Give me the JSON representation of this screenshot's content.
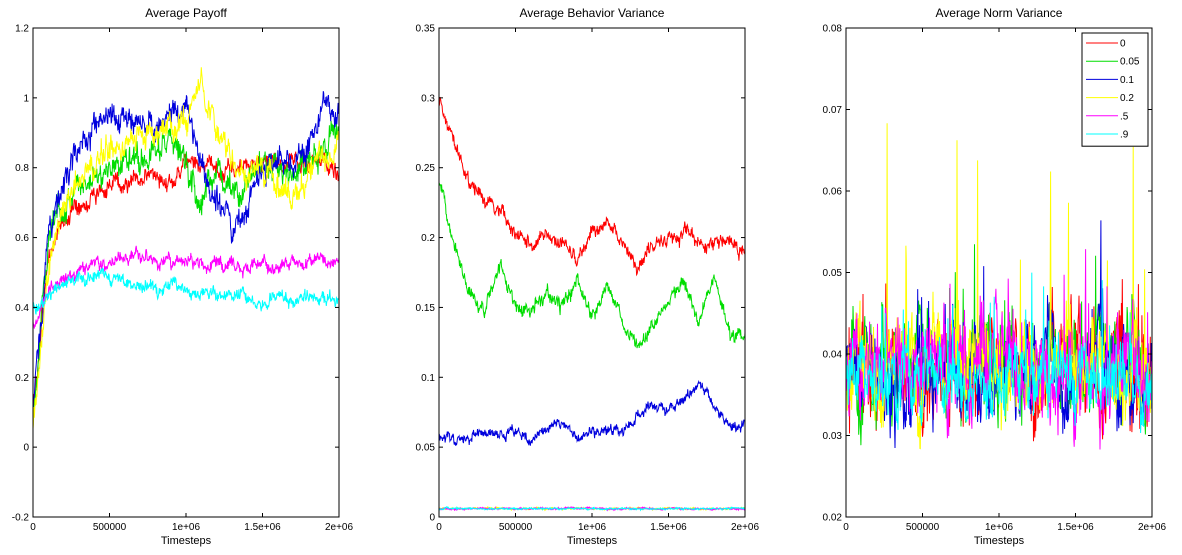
{
  "chart_data": [
    {
      "type": "line",
      "title": "Average Payoff",
      "xlabel": "Timesteps",
      "ylabel": "",
      "xlim": [
        0,
        2000000
      ],
      "ylim": [
        -0.2,
        1.2
      ],
      "xticks": [
        0,
        500000,
        1000000,
        1500000,
        2000000
      ],
      "xtick_labels": [
        "0",
        "500000",
        "1e+06",
        "1.5e+06",
        "2e+06"
      ],
      "yticks": [
        -0.2,
        0,
        0.2,
        0.4,
        0.6,
        0.8,
        1,
        1.2
      ],
      "ytick_labels": [
        "-0.2",
        "0",
        "0.2",
        "0.4",
        "0.6",
        "0.8",
        "1",
        "1.2"
      ],
      "grid": false,
      "x": [
        0,
        100000,
        200000,
        300000,
        400000,
        500000,
        600000,
        700000,
        800000,
        900000,
        1000000,
        1100000,
        1200000,
        1300000,
        1400000,
        1500000,
        1600000,
        1700000,
        1800000,
        1900000,
        2000000
      ],
      "series": [
        {
          "name": "0",
          "color": "#ff0000",
          "noise": 0.02,
          "values": [
            0.1,
            0.55,
            0.65,
            0.7,
            0.72,
            0.75,
            0.76,
            0.77,
            0.78,
            0.76,
            0.8,
            0.82,
            0.79,
            0.8,
            0.8,
            0.82,
            0.8,
            0.82,
            0.8,
            0.82,
            0.78
          ]
        },
        {
          "name": "0.05",
          "color": "#00dd00",
          "noise": 0.03,
          "values": [
            0.1,
            0.6,
            0.7,
            0.75,
            0.78,
            0.8,
            0.82,
            0.84,
            0.85,
            0.88,
            0.8,
            0.7,
            0.8,
            0.72,
            0.75,
            0.82,
            0.8,
            0.78,
            0.82,
            0.85,
            0.92
          ]
        },
        {
          "name": "0.1",
          "color": "#0000dd",
          "noise": 0.03,
          "values": [
            0.1,
            0.62,
            0.75,
            0.85,
            0.9,
            0.93,
            0.95,
            0.94,
            0.92,
            0.96,
            0.98,
            0.8,
            0.72,
            0.62,
            0.7,
            0.78,
            0.85,
            0.8,
            0.86,
            0.98,
            0.96
          ]
        },
        {
          "name": "0.2",
          "color": "#ffff00",
          "noise": 0.03,
          "values": [
            0.05,
            0.5,
            0.7,
            0.78,
            0.82,
            0.85,
            0.86,
            0.88,
            0.9,
            0.92,
            0.95,
            1.02,
            0.9,
            0.82,
            0.78,
            0.8,
            0.75,
            0.72,
            0.78,
            0.82,
            0.85
          ]
        },
        {
          "name": ".5",
          "color": "#ff00ff",
          "noise": 0.015,
          "values": [
            0.35,
            0.45,
            0.48,
            0.5,
            0.52,
            0.53,
            0.54,
            0.54,
            0.54,
            0.53,
            0.53,
            0.53,
            0.52,
            0.52,
            0.52,
            0.53,
            0.52,
            0.52,
            0.52,
            0.53,
            0.53
          ]
        },
        {
          "name": ".9",
          "color": "#00ffff",
          "noise": 0.015,
          "values": [
            0.4,
            0.44,
            0.47,
            0.48,
            0.49,
            0.48,
            0.47,
            0.46,
            0.46,
            0.46,
            0.45,
            0.44,
            0.44,
            0.43,
            0.43,
            0.42,
            0.42,
            0.42,
            0.43,
            0.43,
            0.43
          ]
        }
      ]
    },
    {
      "type": "line",
      "title": "Average Behavior Variance",
      "xlabel": "Timesteps",
      "ylabel": "",
      "xlim": [
        0,
        2000000
      ],
      "ylim": [
        0,
        0.35
      ],
      "xticks": [
        0,
        500000,
        1000000,
        1500000,
        2000000
      ],
      "xtick_labels": [
        "0",
        "500000",
        "1e+06",
        "1.5e+06",
        "2e+06"
      ],
      "yticks": [
        0,
        0.05,
        0.1,
        0.15,
        0.2,
        0.25,
        0.3,
        0.35
      ],
      "ytick_labels": [
        "0",
        "0.05",
        "0.1",
        "0.15",
        "0.2",
        "0.25",
        "0.3",
        "0.35"
      ],
      "grid": false,
      "x": [
        0,
        100000,
        200000,
        300000,
        400000,
        500000,
        600000,
        700000,
        800000,
        900000,
        1000000,
        1100000,
        1200000,
        1300000,
        1400000,
        1500000,
        1600000,
        1700000,
        1800000,
        1900000,
        2000000
      ],
      "series": [
        {
          "name": "0",
          "color": "#ff0000",
          "noise": 0.004,
          "values": [
            0.3,
            0.27,
            0.24,
            0.225,
            0.22,
            0.2,
            0.195,
            0.2,
            0.195,
            0.185,
            0.205,
            0.21,
            0.195,
            0.18,
            0.19,
            0.2,
            0.205,
            0.195,
            0.195,
            0.2,
            0.185
          ]
        },
        {
          "name": "0.05",
          "color": "#00dd00",
          "noise": 0.004,
          "values": [
            0.24,
            0.2,
            0.16,
            0.15,
            0.18,
            0.15,
            0.145,
            0.16,
            0.15,
            0.17,
            0.14,
            0.165,
            0.14,
            0.12,
            0.14,
            0.16,
            0.165,
            0.14,
            0.17,
            0.13,
            0.125
          ]
        },
        {
          "name": "0.1",
          "color": "#0000dd",
          "noise": 0.003,
          "values": [
            0.06,
            0.055,
            0.055,
            0.06,
            0.06,
            0.06,
            0.055,
            0.065,
            0.065,
            0.055,
            0.06,
            0.065,
            0.06,
            0.075,
            0.08,
            0.075,
            0.085,
            0.095,
            0.08,
            0.065,
            0.065
          ]
        },
        {
          "name": "0.2",
          "color": "#ffff00",
          "noise": 0.0005,
          "values": [
            0.006,
            0.006,
            0.006,
            0.006,
            0.006,
            0.006,
            0.006,
            0.006,
            0.006,
            0.006,
            0.006,
            0.006,
            0.006,
            0.006,
            0.006,
            0.006,
            0.006,
            0.006,
            0.006,
            0.006,
            0.006
          ]
        },
        {
          "name": ".5",
          "color": "#ff00ff",
          "noise": 0.0005,
          "values": [
            0.006,
            0.006,
            0.006,
            0.006,
            0.006,
            0.006,
            0.006,
            0.006,
            0.006,
            0.006,
            0.006,
            0.006,
            0.006,
            0.006,
            0.006,
            0.006,
            0.006,
            0.006,
            0.006,
            0.006,
            0.006
          ]
        },
        {
          "name": ".9",
          "color": "#00ffff",
          "noise": 0.0005,
          "values": [
            0.006,
            0.006,
            0.006,
            0.006,
            0.006,
            0.006,
            0.006,
            0.006,
            0.006,
            0.006,
            0.006,
            0.006,
            0.006,
            0.006,
            0.006,
            0.006,
            0.006,
            0.006,
            0.006,
            0.006,
            0.006
          ]
        }
      ]
    },
    {
      "type": "line",
      "title": "Average Norm Variance",
      "xlabel": "Timesteps",
      "ylabel": "",
      "xlim": [
        0,
        2000000
      ],
      "ylim": [
        0.02,
        0.08
      ],
      "xticks": [
        0,
        500000,
        1000000,
        1500000,
        2000000
      ],
      "xtick_labels": [
        "0",
        "500000",
        "1e+06",
        "1.5e+06",
        "2e+06"
      ],
      "yticks": [
        0.02,
        0.03,
        0.04,
        0.05,
        0.06,
        0.07,
        0.08
      ],
      "ytick_labels": [
        "0.02",
        "0.03",
        "0.04",
        "0.05",
        "0.06",
        "0.07",
        "0.08"
      ],
      "grid": false,
      "legend_position": "top-right",
      "x": [
        0,
        100000,
        200000,
        300000,
        400000,
        500000,
        600000,
        700000,
        800000,
        900000,
        1000000,
        1100000,
        1200000,
        1300000,
        1400000,
        1500000,
        1600000,
        1700000,
        1800000,
        1900000,
        2000000
      ],
      "series": [
        {
          "name": "0",
          "color": "#ff0000",
          "noise": 0.004,
          "values": [
            0.038,
            0.038,
            0.038,
            0.038,
            0.038,
            0.038,
            0.038,
            0.038,
            0.038,
            0.038,
            0.038,
            0.038,
            0.038,
            0.038,
            0.038,
            0.038,
            0.038,
            0.038,
            0.038,
            0.038,
            0.038
          ]
        },
        {
          "name": "0.05",
          "color": "#00dd00",
          "noise": 0.004,
          "values": [
            0.038,
            0.038,
            0.038,
            0.038,
            0.038,
            0.038,
            0.038,
            0.038,
            0.038,
            0.038,
            0.038,
            0.038,
            0.038,
            0.038,
            0.038,
            0.038,
            0.038,
            0.038,
            0.038,
            0.038,
            0.038
          ]
        },
        {
          "name": "0.1",
          "color": "#0000dd",
          "noise": 0.004,
          "values": [
            0.038,
            0.038,
            0.038,
            0.038,
            0.038,
            0.038,
            0.038,
            0.038,
            0.038,
            0.038,
            0.038,
            0.038,
            0.038,
            0.038,
            0.038,
            0.038,
            0.038,
            0.038,
            0.038,
            0.038,
            0.038
          ]
        },
        {
          "name": "0.2",
          "color": "#ffff00",
          "noise": 0.004,
          "values": [
            0.038,
            0.038,
            0.038,
            0.038,
            0.038,
            0.038,
            0.038,
            0.038,
            0.038,
            0.038,
            0.038,
            0.038,
            0.038,
            0.038,
            0.038,
            0.038,
            0.038,
            0.038,
            0.038,
            0.038,
            0.038
          ]
        },
        {
          "name": ".5",
          "color": "#ff00ff",
          "noise": 0.004,
          "values": [
            0.038,
            0.038,
            0.038,
            0.038,
            0.038,
            0.038,
            0.038,
            0.038,
            0.038,
            0.038,
            0.038,
            0.038,
            0.038,
            0.038,
            0.038,
            0.038,
            0.038,
            0.038,
            0.038,
            0.038,
            0.038
          ]
        },
        {
          "name": ".9",
          "color": "#00ffff",
          "noise": 0.003,
          "values": [
            0.037,
            0.037,
            0.037,
            0.037,
            0.037,
            0.037,
            0.037,
            0.037,
            0.037,
            0.037,
            0.037,
            0.037,
            0.037,
            0.037,
            0.037,
            0.037,
            0.037,
            0.037,
            0.037,
            0.037,
            0.037
          ]
        }
      ],
      "legend": [
        "0",
        "0.05",
        "0.1",
        "0.2",
        ".5",
        ".9"
      ]
    }
  ]
}
